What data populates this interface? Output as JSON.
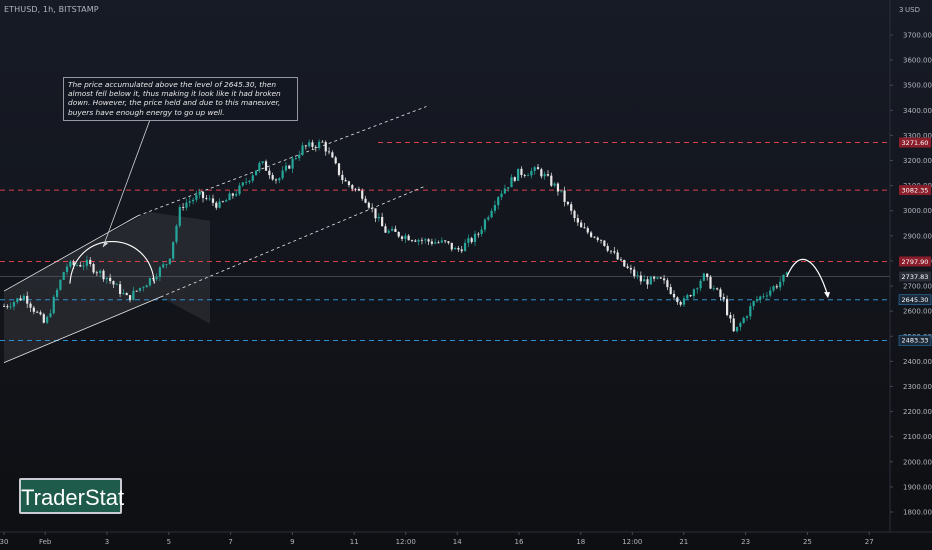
{
  "header": {
    "symbol_title": "ETHUSD, 1h, BITSTAMP"
  },
  "annotation": {
    "text": "The price accumulated above the level of 2645.30, then almost fell below it, thus making it look like it had broken down. However, the price held and due to this maneuver, buyers have enough energy to go up well."
  },
  "watermark": {
    "text": "TraderStat"
  },
  "colors": {
    "background": "#131722",
    "candle_up": "#26a69a",
    "candle_down": "#e8e8e8",
    "resistance_line": "#d9404b",
    "support_line": "#2f8fcf",
    "channel_line": "#e8e8e8",
    "text": "#b2b5be"
  },
  "chart_data": {
    "type": "candlestick",
    "symbol": "ETHUSD",
    "timeframe": "1h",
    "exchange": "BITSTAMP",
    "currency_label": "USD",
    "y_axis": {
      "ticks": [
        1800,
        1900,
        2000,
        2100,
        2200,
        2300,
        2400,
        2500,
        2600,
        2700,
        2800,
        2900,
        3000,
        3100,
        3200,
        3300,
        3400,
        3500,
        3600,
        3700
      ],
      "tick_labels": [
        "1800.00",
        "1900.00",
        "2000.00",
        "2100.00",
        "2200.00",
        "2300.00",
        "2400.00",
        "2500.00",
        "2600.00",
        "2700.00",
        "2800.00",
        "2900.00",
        "3000.00",
        "3100.00",
        "3200.00",
        "3300.00",
        "3400.00",
        "3500.00",
        "3600.00",
        "3700.00"
      ],
      "ylim": [
        1740,
        3810
      ]
    },
    "x_axis": {
      "tick_labels": [
        "30",
        "Feb",
        "3",
        "5",
        "7",
        "9",
        "11",
        "12:00",
        "14",
        "16",
        "18",
        "12:00",
        "21",
        "23",
        "25",
        "27"
      ],
      "tick_index": [
        0,
        2,
        5,
        8,
        11,
        14,
        17,
        19.5,
        22,
        25,
        28,
        30.5,
        33,
        36,
        39,
        42
      ]
    },
    "current_price": "2737.83",
    "current_price_value": 2737.83,
    "levels": [
      {
        "label": "3271.60",
        "value": 3271.6,
        "kind": "resistance"
      },
      {
        "label": "3082.35",
        "value": 3082.35,
        "kind": "resistance"
      },
      {
        "label": "2797.90",
        "value": 2797.9,
        "kind": "resistance"
      },
      {
        "label": "2645.30",
        "value": 2645.3,
        "kind": "support"
      },
      {
        "label": "2483.33",
        "value": 2483.33,
        "kind": "support"
      }
    ],
    "price_path": [
      [
        0,
        2620
      ],
      [
        1,
        2660
      ],
      [
        2,
        2545
      ],
      [
        3,
        2780
      ],
      [
        4,
        2790
      ],
      [
        5,
        2735
      ],
      [
        6,
        2650
      ],
      [
        7,
        2720
      ],
      [
        8,
        2800
      ],
      [
        8.6,
        3020
      ],
      [
        9.5,
        3060
      ],
      [
        10.5,
        3020
      ],
      [
        11.5,
        3090
      ],
      [
        12.5,
        3190
      ],
      [
        13.3,
        3120
      ],
      [
        14.5,
        3250
      ],
      [
        15.5,
        3270
      ],
      [
        16.5,
        3120
      ],
      [
        17.5,
        3060
      ],
      [
        18.5,
        2920
      ],
      [
        19.5,
        2900
      ],
      [
        20.5,
        2880
      ],
      [
        21.5,
        2870
      ],
      [
        22,
        2840
      ],
      [
        23,
        2900
      ],
      [
        24,
        3060
      ],
      [
        25,
        3150
      ],
      [
        26,
        3160
      ],
      [
        27,
        3080
      ],
      [
        28,
        2930
      ],
      [
        29,
        2890
      ],
      [
        30,
        2790
      ],
      [
        31,
        2720
      ],
      [
        32,
        2720
      ],
      [
        33,
        2630
      ],
      [
        34,
        2740
      ],
      [
        35,
        2640
      ],
      [
        35.5,
        2510
      ],
      [
        36.5,
        2640
      ],
      [
        37.5,
        2700
      ],
      [
        38,
        2737.83
      ]
    ],
    "channel": {
      "upper": [
        [
          0,
          2680
        ],
        [
          6.5,
          2980
        ],
        [
          20.5,
          3415
        ]
      ],
      "lower": [
        [
          0,
          2395
        ],
        [
          20.5,
          3100
        ]
      ]
    },
    "accumulation_zone": {
      "x_range": [
        0,
        10
      ],
      "values": [
        2550,
        2960
      ]
    },
    "projection": {
      "x": [
        38,
        38.6,
        39.4,
        40
      ],
      "y": [
        2736,
        2800,
        2745,
        2660
      ]
    }
  }
}
